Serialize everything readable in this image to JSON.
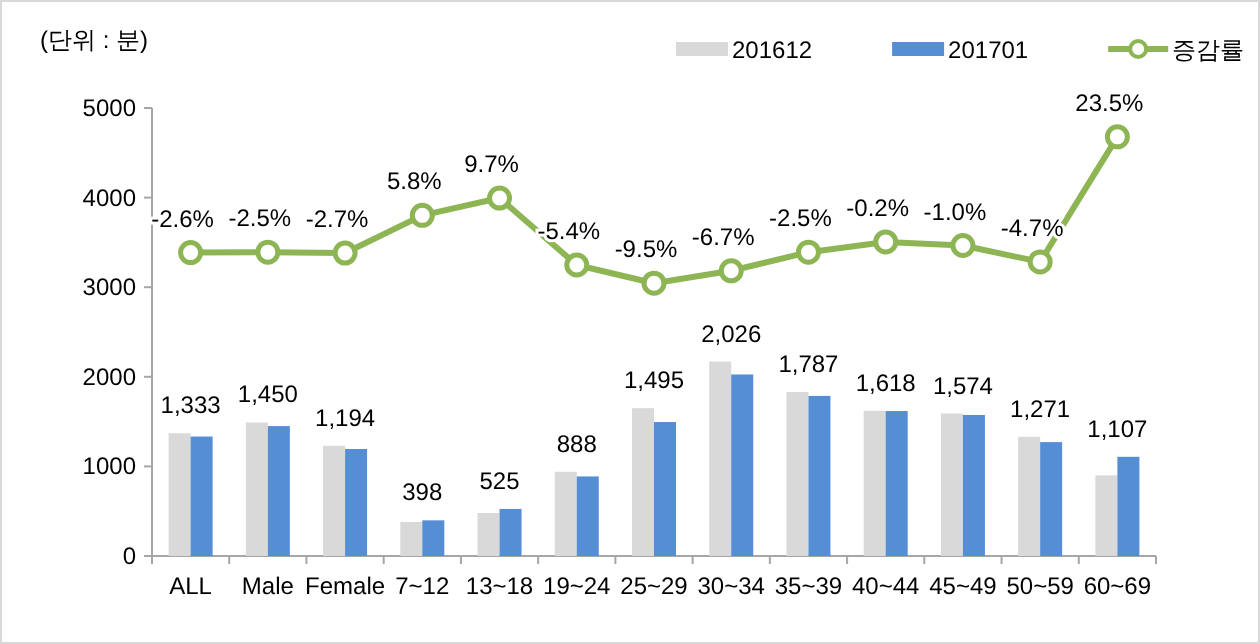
{
  "chart_data": {
    "type": "bar",
    "ylabel": "(단위 : 분)",
    "categories": [
      "ALL",
      "Male",
      "Female",
      "7~12",
      "13~18",
      "19~24",
      "25~29",
      "30~34",
      "35~39",
      "40~44",
      "45~49",
      "50~59",
      "60~69"
    ],
    "series": [
      {
        "name": "201612",
        "color": "#d9d9d9",
        "values": [
          1370,
          1490,
          1230,
          380,
          480,
          940,
          1650,
          2170,
          1830,
          1620,
          1590,
          1330,
          900
        ]
      },
      {
        "name": "201701",
        "color": "#558ed5",
        "values": [
          1333,
          1450,
          1194,
          398,
          525,
          888,
          1495,
          2026,
          1787,
          1618,
          1574,
          1271,
          1107
        ],
        "value_labels": [
          "1,333",
          "1,450",
          "1,194",
          "398",
          "525",
          "888",
          "1,495",
          "2,026",
          "1,787",
          "1,618",
          "1,574",
          "1,271",
          "1,107"
        ]
      },
      {
        "name": "증감률",
        "type": "line",
        "axis": "y2",
        "color": "#8db554",
        "marker": "circle",
        "values": [
          -2.6,
          -2.5,
          -2.7,
          5.8,
          9.7,
          -5.4,
          -9.5,
          -6.7,
          -2.5,
          -0.2,
          -1.0,
          -4.7,
          23.5
        ],
        "value_labels": [
          "-2.6%",
          "-2.5%",
          "-2.7%",
          "5.8%",
          "9.7%",
          "-5.4%",
          "-9.5%",
          "-6.7%",
          "-2.5%",
          "-0.2%",
          "-1.0%",
          "-4.7%",
          "23.5%"
        ]
      }
    ],
    "ylim": [
      0,
      5000
    ],
    "yticks": [
      0,
      1000,
      2000,
      3000,
      4000,
      5000
    ],
    "y2lim": [
      -71,
      30
    ],
    "grid": false,
    "legend": "top right"
  }
}
